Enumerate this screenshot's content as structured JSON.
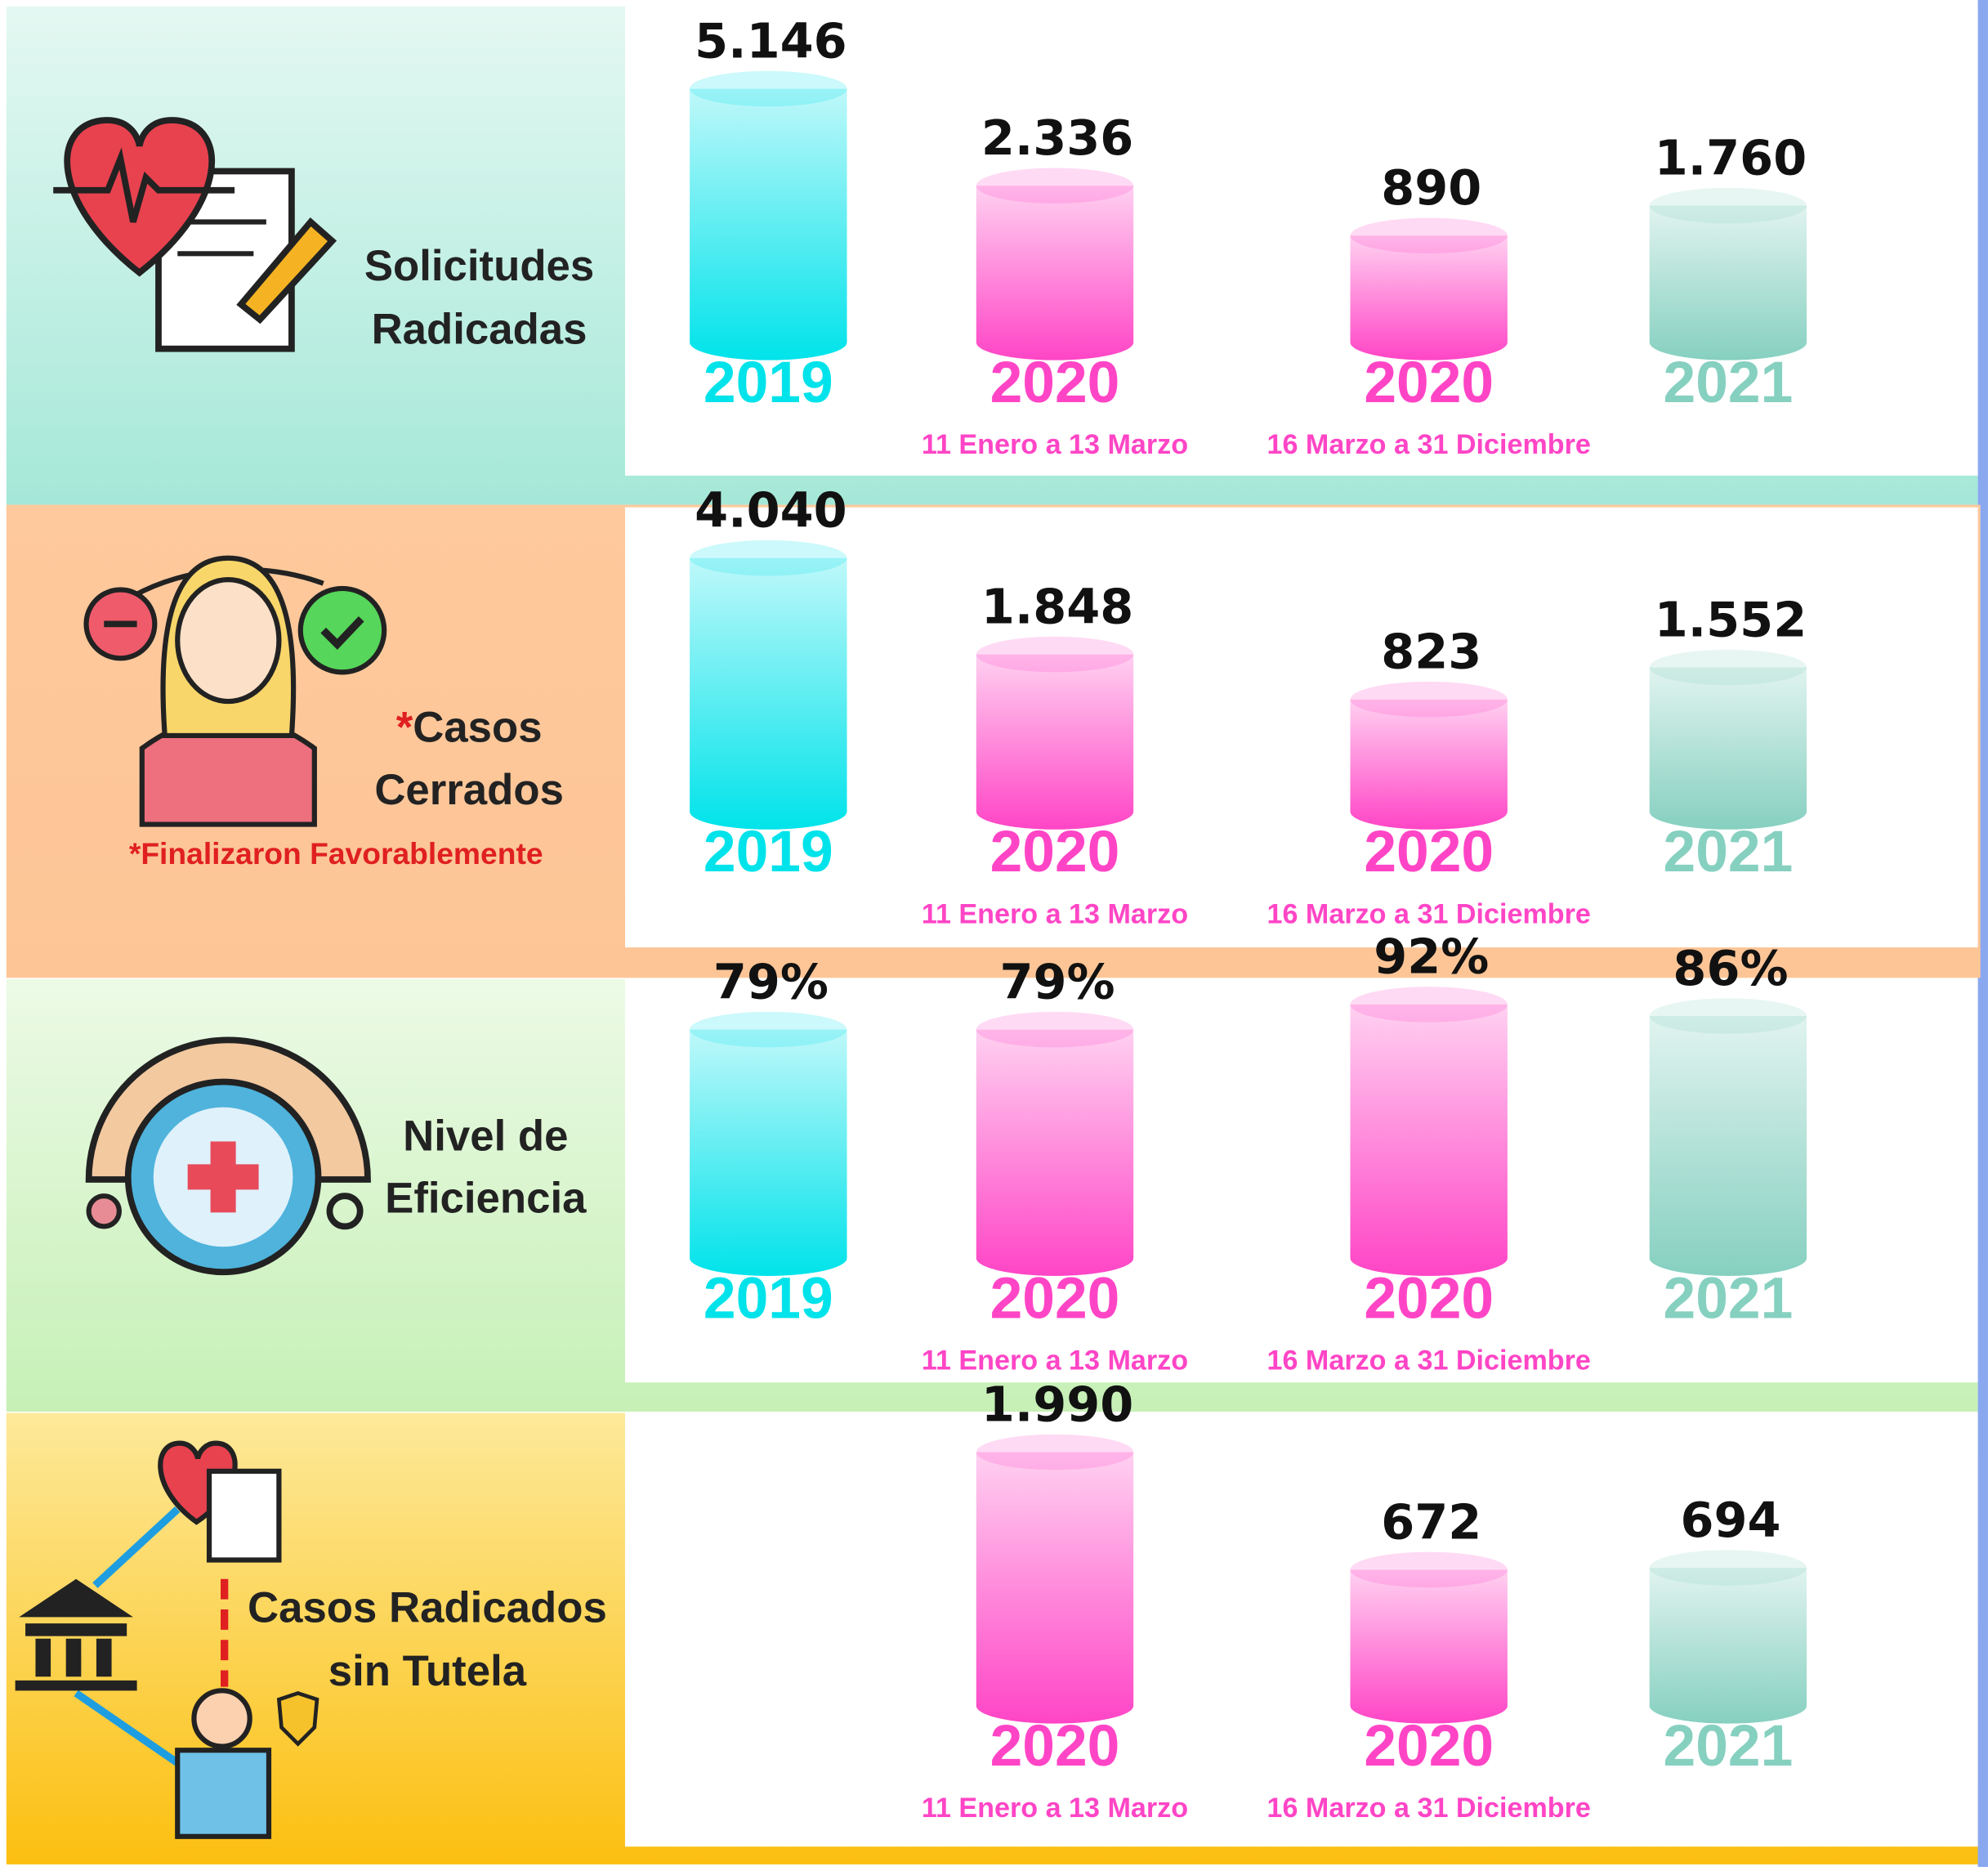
{
  "chart_data": [
    {
      "type": "bar",
      "title": [
        "Solicitudes",
        "Radicadas"
      ],
      "categories": [
        "2019",
        "2020",
        "2020",
        "2021"
      ],
      "subcategories": [
        null,
        "11 Enero a 13 Marzo",
        "16 Marzo a 31 Diciembre",
        null
      ],
      "values": [
        5146,
        2336,
        890,
        1760
      ],
      "value_labels": [
        "5.146",
        "2.336",
        "890",
        "1.760"
      ],
      "colors": [
        "#00e3ea",
        "#ff45c6",
        "#ff45c6",
        "#86d0c0"
      ]
    },
    {
      "type": "bar",
      "title_mark": "*",
      "title": [
        "Casos",
        "Cerrados"
      ],
      "note": "*Finalizaron Favorablemente",
      "categories": [
        "2019",
        "2020",
        "2020",
        "2021"
      ],
      "subcategories": [
        null,
        "11 Enero a 13 Marzo",
        "16 Marzo a 31 Diciembre",
        null
      ],
      "values": [
        4040,
        1848,
        823,
        1552
      ],
      "value_labels": [
        "4.040",
        "1.848",
        "823",
        "1.552"
      ],
      "colors": [
        "#00e3ea",
        "#ff45c6",
        "#ff45c6",
        "#86d0c0"
      ]
    },
    {
      "type": "bar",
      "title": [
        "Nivel de",
        "Eficiencia"
      ],
      "categories": [
        "2019",
        "2020",
        "2020",
        "2021"
      ],
      "subcategories": [
        null,
        "11 Enero a 13 Marzo",
        "16 Marzo a 31 Diciembre",
        null
      ],
      "values": [
        79,
        79,
        92,
        86
      ],
      "value_labels": [
        "79%",
        "79%",
        "92%",
        "86%"
      ],
      "colors": [
        "#00e3ea",
        "#ff45c6",
        "#ff45c6",
        "#86d0c0"
      ]
    },
    {
      "type": "bar",
      "title": [
        "Casos Radicados",
        "sin Tutela"
      ],
      "categories": [
        null,
        "2020",
        "2020",
        "2021"
      ],
      "subcategories": [
        null,
        "11 Enero a 13 Marzo",
        "16 Marzo a 31 Diciembre",
        null
      ],
      "values": [
        null,
        1990,
        672,
        694
      ],
      "value_labels": [
        null,
        "1.990",
        "672",
        "694"
      ],
      "colors": [
        null,
        "#ff45c6",
        "#ff45c6",
        "#86d0c0"
      ]
    }
  ]
}
